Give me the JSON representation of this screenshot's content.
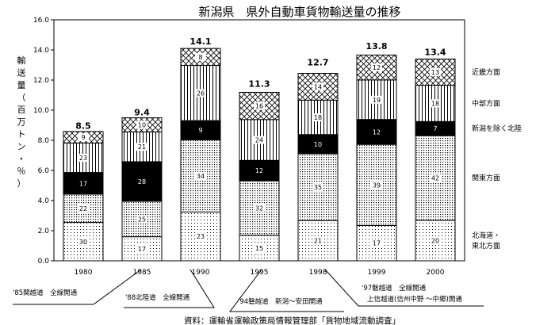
{
  "chart_data": {
    "type": "bar",
    "stacked": true,
    "title": "新潟県　県外自動車貨物輸送量の推移",
    "ylabel": "輸送量（百万トン・％）",
    "ylim": [
      0,
      16
    ],
    "yticks": [
      "0.0",
      "2.0",
      "4.0",
      "6.0",
      "8.0",
      "10.0",
      "12.0",
      "14.0",
      "16.0"
    ],
    "categories": [
      "1980",
      "1985",
      "1990",
      "1995",
      "1998",
      "1999",
      "2000"
    ],
    "totals": [
      8.5,
      9.4,
      14.1,
      11.3,
      12.7,
      13.8,
      13.4
    ],
    "totals_labels": [
      "8.5",
      "9.4",
      "14.1",
      "11.3",
      "12.7",
      "13.8",
      "13.4"
    ],
    "series": [
      {
        "name": "北海道・東北方面",
        "legend_lines": [
          "北海道・",
          "東北方面"
        ],
        "pattern": "dots",
        "percent": [
          30,
          17,
          23,
          15,
          21,
          17,
          20
        ]
      },
      {
        "name": "関東方面",
        "legend_lines": [
          "関東方面"
        ],
        "pattern": "dots-dense",
        "percent": [
          22,
          25,
          34,
          32,
          35,
          39,
          42
        ]
      },
      {
        "name": "新潟を除く北陸",
        "legend_lines": [
          "新潟を除く北陸"
        ],
        "pattern": "solid",
        "percent": [
          17,
          28,
          9,
          12,
          10,
          12,
          7
        ]
      },
      {
        "name": "中部方面",
        "legend_lines": [
          "中部方面"
        ],
        "pattern": "vlines",
        "percent": [
          23,
          21,
          26,
          24,
          18,
          19,
          18
        ]
      },
      {
        "name": "近畿方面",
        "legend_lines": [
          "近畿方面"
        ],
        "pattern": "crosshatch",
        "percent": [
          9,
          10,
          8,
          16,
          14,
          12,
          13
        ]
      }
    ],
    "annotations": [
      "'85関越道　全線開通",
      "'88北陸道　全線開通",
      "'94磐越道　新潟～安田開通",
      "'97磐越道　全線開通",
      "上信越道(信州中野 ～中郷)開通"
    ],
    "source": "資料：運輸省運輸政策局情報管理部「貨物地域流動調査」"
  }
}
